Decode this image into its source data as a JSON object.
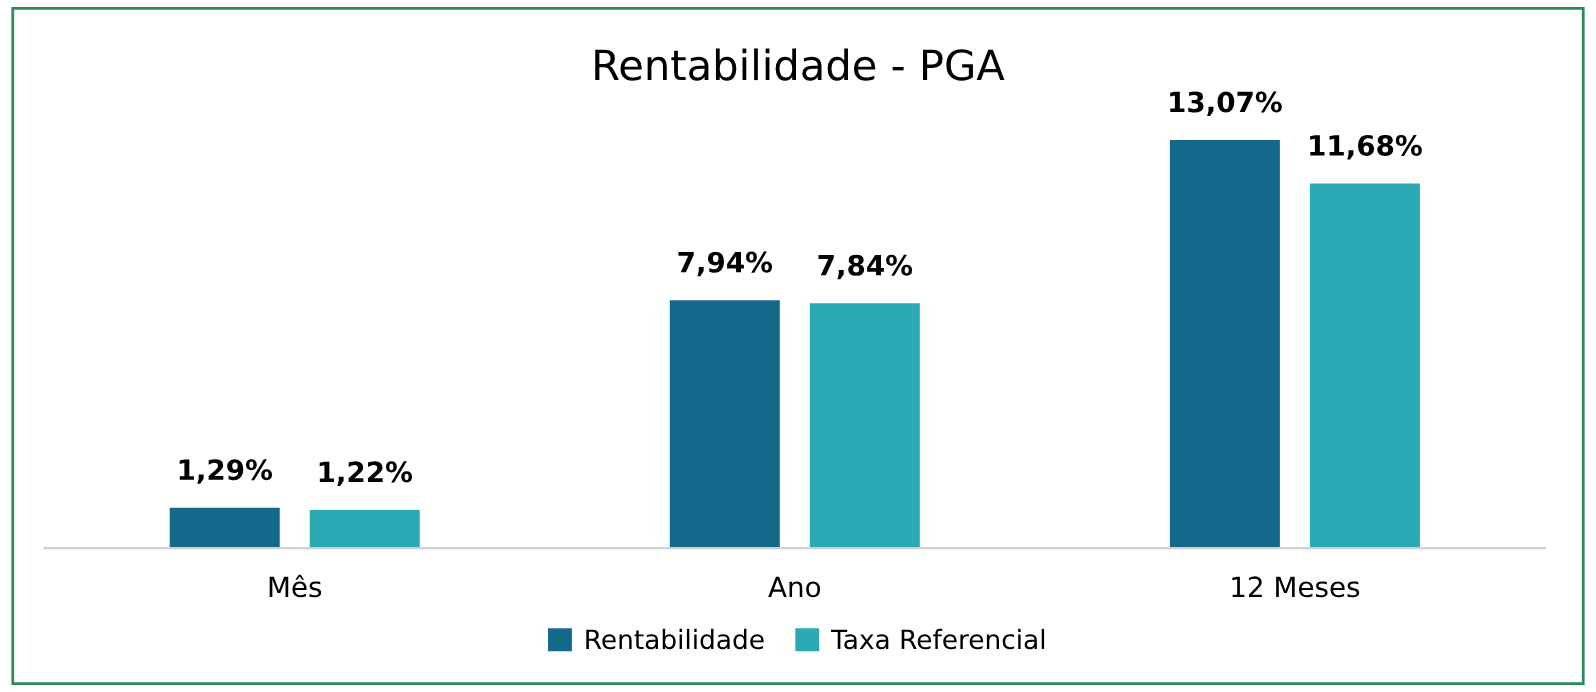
{
  "chart_data": {
    "type": "bar",
    "title": "Rentabilidade - PGA",
    "categories": [
      "Mês",
      "Ano",
      "12 Meses"
    ],
    "series": [
      {
        "name": "Rentabilidade",
        "color": "#13698a",
        "values": [
          1.29,
          7.94,
          13.07
        ],
        "value_labels": [
          "1,29%",
          "7,94%",
          "13,07%"
        ]
      },
      {
        "name": "Taxa Referencial",
        "color": "#2aabb3",
        "values": [
          1.22,
          7.84,
          11.68
        ],
        "value_labels": [
          "1,22%",
          "7,84%",
          "11,68%"
        ]
      }
    ],
    "legend": "bottom",
    "grid": false
  }
}
